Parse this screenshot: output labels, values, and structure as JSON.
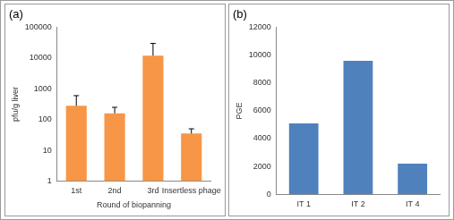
{
  "chart_data": [
    {
      "type": "bar",
      "title": "(a)",
      "categories": [
        "1st",
        "2nd",
        "3rd",
        "Insertless phage"
      ],
      "values": [
        280,
        160,
        12000,
        35
      ],
      "errors": [
        320,
        90,
        18000,
        15
      ],
      "color": "#f79646",
      "x_label": "Round of biopanning",
      "y_label": "pfu/g liver",
      "log": "y",
      "ylim": [
        1,
        100000
      ],
      "yticks": [
        1,
        10,
        100,
        1000,
        10000,
        100000
      ],
      "grid": false
    },
    {
      "type": "bar",
      "title": "(b)",
      "categories": [
        "IT 1",
        "IT 2",
        "IT 4"
      ],
      "values": [
        5100,
        9600,
        2200
      ],
      "color": "#4f81bd",
      "y_label": "PGE",
      "ylim": [
        0,
        12000
      ],
      "yticks": [
        0,
        2000,
        4000,
        6000,
        8000,
        10000,
        12000
      ],
      "grid": false
    }
  ]
}
